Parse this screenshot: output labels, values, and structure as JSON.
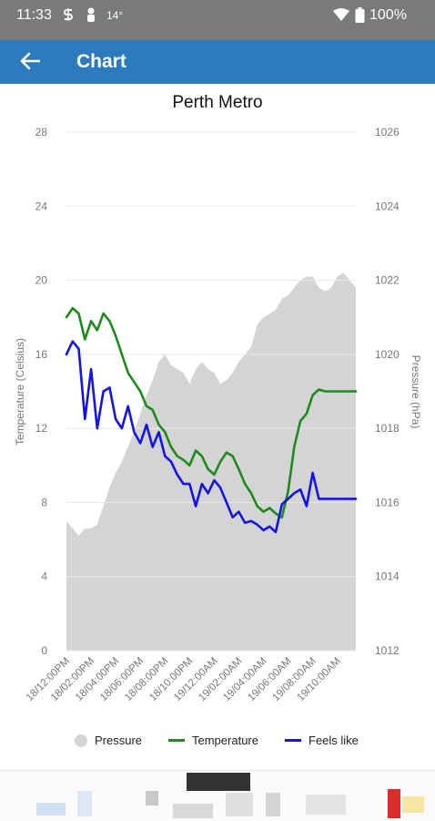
{
  "status_bar": {
    "time": "11:33",
    "temperature": "14°",
    "battery": "100%",
    "icons": [
      "s-notification-icon",
      "person-notification-icon",
      "wifi-icon",
      "battery-icon"
    ]
  },
  "app_bar": {
    "back_icon": "arrow-left-icon",
    "title": "Chart"
  },
  "colors": {
    "app_bar": "#2b7bbd",
    "pressure": "#d4d4d4",
    "temperature": "#1e8a1e",
    "feels_like": "#1414e6"
  },
  "legend": {
    "pressure": "Pressure",
    "temperature": "Temperature",
    "feels_like": "Feels like"
  },
  "chart_data": {
    "type": "line",
    "title": "Perth Metro",
    "ylabel": "Temperature (Celsius)",
    "y2label": "Pressure (hPa)",
    "ylim": [
      0,
      28
    ],
    "y2lim": [
      1012,
      1026
    ],
    "yticks": [
      "0",
      "4",
      "8",
      "12",
      "16",
      "20",
      "24",
      "28"
    ],
    "y2ticks": [
      "1012",
      "1014",
      "1016",
      "1018",
      "1020",
      "1022",
      "1024",
      "1026"
    ],
    "x_tick_labels": [
      "18/12:00PM",
      "18/02:00PM",
      "18/04:00PM",
      "18/06:00PM",
      "18/08:00PM",
      "18/10:00PM",
      "19/12:00AM",
      "19/02:00AM",
      "19/04:00AM",
      "19/06:00AM",
      "19/08:00AM",
      "19/10:00AM"
    ],
    "grid": true,
    "legend_position": "bottom",
    "x_hours": [
      0,
      0.5,
      1,
      1.5,
      2,
      2.5,
      3,
      3.5,
      4,
      4.5,
      5,
      5.5,
      6,
      6.5,
      7,
      7.5,
      8,
      8.5,
      9,
      9.5,
      10,
      10.5,
      11,
      11.5,
      12,
      12.5,
      13,
      13.5,
      14,
      14.5,
      15,
      15.5,
      16,
      16.5,
      17,
      17.5,
      18,
      18.5,
      19,
      19.5,
      20,
      20.5,
      21,
      21.5,
      22,
      22.5,
      23,
      23.5
    ],
    "series": [
      {
        "name": "Pressure",
        "axis": "right",
        "type": "area",
        "values": [
          1015.5,
          1015.3,
          1015.1,
          1015.3,
          1015.3,
          1015.4,
          1015.9,
          1016.4,
          1016.8,
          1017.1,
          1017.5,
          1017.9,
          1018.4,
          1018.9,
          1019.3,
          1019.8,
          1020.0,
          1019.7,
          1019.6,
          1019.5,
          1019.2,
          1019.6,
          1019.8,
          1019.6,
          1019.5,
          1019.2,
          1019.3,
          1019.5,
          1019.8,
          1020.0,
          1020.2,
          1020.8,
          1021.0,
          1021.1,
          1021.2,
          1021.5,
          1021.6,
          1021.8,
          1022.0,
          1022.1,
          1022.1,
          1021.8,
          1021.7,
          1021.8,
          1022.1,
          1022.2,
          1022.0,
          1021.8
        ]
      },
      {
        "name": "Temperature",
        "axis": "left",
        "values": [
          18.0,
          18.5,
          18.2,
          16.8,
          17.8,
          17.3,
          18.2,
          17.8,
          17.0,
          16.0,
          15.0,
          14.5,
          14.0,
          13.2,
          13.0,
          12.2,
          11.8,
          11.0,
          10.5,
          10.3,
          10.0,
          10.8,
          10.5,
          9.8,
          9.5,
          10.2,
          10.7,
          10.5,
          9.8,
          9.0,
          8.5,
          7.8,
          7.5,
          7.7,
          7.4,
          7.2,
          8.6,
          11.0,
          12.4,
          12.8,
          13.8,
          14.1,
          14.0,
          14.0,
          14.0,
          14.0,
          14.0,
          14.0
        ]
      },
      {
        "name": "Feels like",
        "axis": "left",
        "values": [
          16.0,
          16.7,
          16.3,
          12.5,
          15.2,
          12.0,
          14.0,
          14.2,
          12.5,
          12.0,
          13.2,
          11.8,
          11.2,
          12.2,
          11.0,
          11.8,
          10.5,
          10.2,
          9.5,
          9.0,
          9.0,
          7.8,
          9.0,
          8.5,
          9.2,
          8.8,
          8.0,
          7.2,
          7.5,
          6.9,
          7.0,
          6.8,
          6.5,
          6.7,
          6.4,
          7.9,
          8.2,
          8.5,
          8.7,
          7.8,
          9.6,
          8.2,
          8.2,
          8.2,
          8.2,
          8.2,
          8.2,
          8.2
        ]
      }
    ]
  }
}
